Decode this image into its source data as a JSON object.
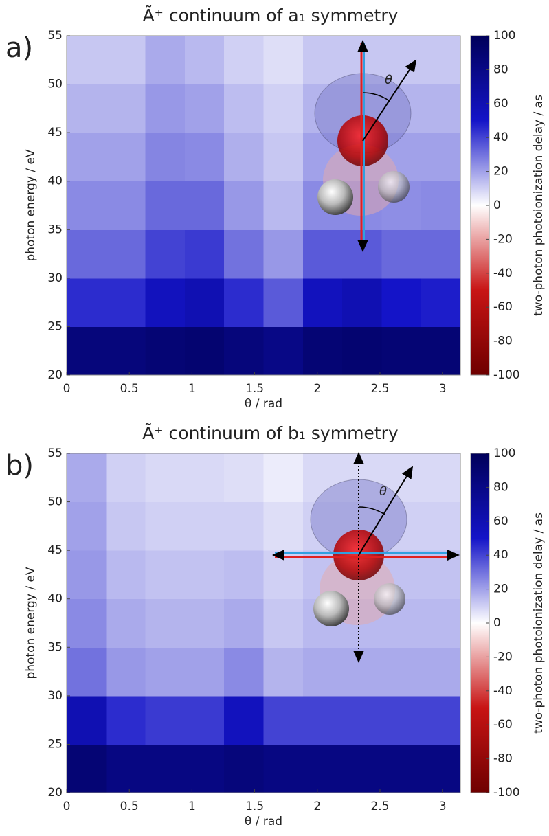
{
  "chart_data": [
    {
      "type": "heatmap",
      "panel_label": "a)",
      "title": "Ã⁺ continuum of a₁ symmetry",
      "xlabel": "θ / rad",
      "ylabel": "photon energy / eV",
      "colorbar_label": "two-photon photoionization delay / as",
      "inset_label": "θ",
      "xbins": [
        0,
        0.3142,
        0.6283,
        0.9425,
        1.2566,
        1.5708,
        1.885,
        2.1991,
        2.5133,
        2.8274,
        3.1416
      ],
      "ybins": [
        20,
        25,
        30,
        35,
        40,
        45,
        50,
        55
      ],
      "values": [
        [
          85,
          85,
          88,
          90,
          85,
          80,
          88,
          90,
          88,
          88
        ],
        [
          45,
          45,
          55,
          60,
          45,
          35,
          55,
          60,
          50,
          48
        ],
        [
          32,
          32,
          40,
          42,
          30,
          22,
          35,
          35,
          32,
          32
        ],
        [
          25,
          25,
          32,
          32,
          22,
          15,
          25,
          25,
          24,
          25
        ],
        [
          20,
          20,
          26,
          25,
          17,
          12,
          20,
          20,
          20,
          20
        ],
        [
          16,
          16,
          22,
          20,
          14,
          10,
          16,
          16,
          16,
          16
        ],
        [
          12,
          12,
          18,
          15,
          10,
          7,
          12,
          12,
          12,
          12
        ]
      ],
      "xlim": [
        0,
        3.1416
      ],
      "ylim": [
        20,
        55
      ],
      "xticks": [
        0,
        0.5,
        1,
        1.5,
        2,
        2.5,
        3
      ],
      "yticks": [
        20,
        25,
        30,
        35,
        40,
        45,
        50,
        55
      ],
      "zlim": [
        -100,
        100
      ],
      "zticks": [
        100,
        80,
        60,
        40,
        20,
        0,
        -20,
        -40,
        -60,
        -80,
        -100
      ],
      "colors": [
        "#6e0000",
        "#c81414",
        "#ffffff",
        "#1414c8",
        "#00005a"
      ]
    },
    {
      "type": "heatmap",
      "panel_label": "b)",
      "title": "Ã⁺ continuum of b₁ symmetry",
      "xlabel": "θ / rad",
      "ylabel": "photon energy / eV",
      "colorbar_label": "two-photon photoionization delay / as",
      "inset_label": "θ",
      "xbins": [
        0,
        0.3142,
        0.6283,
        0.9425,
        1.2566,
        1.5708,
        1.885,
        2.1991,
        2.5133,
        2.8274,
        3.1416
      ],
      "ybins": [
        20,
        25,
        30,
        35,
        40,
        45,
        50,
        55
      ],
      "values": [
        [
          88,
          82,
          82,
          82,
          85,
          82,
          82,
          82,
          82,
          82
        ],
        [
          60,
          45,
          42,
          42,
          55,
          40,
          40,
          40,
          40,
          40
        ],
        [
          30,
          22,
          20,
          20,
          25,
          16,
          18,
          18,
          18,
          18
        ],
        [
          25,
          18,
          16,
          16,
          18,
          12,
          15,
          15,
          15,
          15
        ],
        [
          22,
          15,
          13,
          13,
          14,
          10,
          13,
          13,
          13,
          13
        ],
        [
          20,
          12,
          10,
          10,
          10,
          7,
          10,
          10,
          10,
          10
        ],
        [
          18,
          10,
          8,
          8,
          7,
          4,
          8,
          8,
          8,
          8
        ]
      ],
      "xlim": [
        0,
        3.1416
      ],
      "ylim": [
        20,
        55
      ],
      "xticks": [
        0,
        0.5,
        1,
        1.5,
        2,
        2.5,
        3
      ],
      "yticks": [
        20,
        25,
        30,
        35,
        40,
        45,
        50,
        55
      ],
      "zlim": [
        -100,
        100
      ],
      "zticks": [
        100,
        80,
        60,
        40,
        20,
        0,
        -20,
        -40,
        -60,
        -80,
        -100
      ],
      "colors": [
        "#6e0000",
        "#c81414",
        "#ffffff",
        "#1414c8",
        "#00005a"
      ]
    }
  ]
}
